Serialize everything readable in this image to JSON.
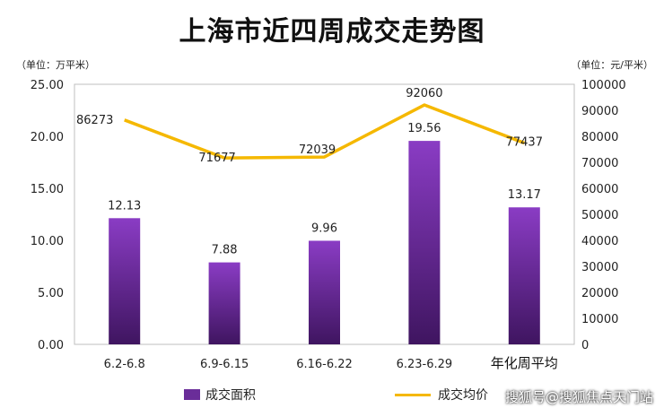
{
  "title": "上海市近四周成交走势图",
  "unit_left": "（单位：万平米）",
  "unit_right": "（单位：元/平米）",
  "watermark": "搜狐号@搜狐焦点天门站",
  "colors": {
    "bar": "#6a2d99",
    "line": "#f5b800"
  },
  "chart_data": {
    "type": "bar",
    "categories": [
      "6.2-6.8",
      "6.9-6.15",
      "6.16-6.22",
      "6.23-6.29",
      "年化周平均"
    ],
    "series": [
      {
        "name": "成交面积",
        "type": "bar",
        "axis": "left",
        "values": [
          12.13,
          7.88,
          9.96,
          19.56,
          13.17
        ],
        "labels": [
          "12.13",
          "7.88",
          "9.96",
          "19.56",
          "13.17"
        ]
      },
      {
        "name": "成交均价",
        "type": "line",
        "axis": "right",
        "values": [
          86273,
          71677,
          72039,
          92060,
          77437
        ],
        "labels": [
          "86273",
          "71677",
          "72039",
          "92060",
          "77437"
        ]
      }
    ],
    "y_left": {
      "ylim": [
        0,
        25
      ],
      "ticks": [
        "0.00",
        "5.00",
        "10.00",
        "15.00",
        "20.00",
        "25.00"
      ]
    },
    "y_right": {
      "ylim": [
        0,
        100000
      ],
      "ticks": [
        "0",
        "10000",
        "20000",
        "30000",
        "40000",
        "50000",
        "60000",
        "70000",
        "80000",
        "90000",
        "100000"
      ]
    },
    "grid": false,
    "legend_position": "bottom"
  }
}
